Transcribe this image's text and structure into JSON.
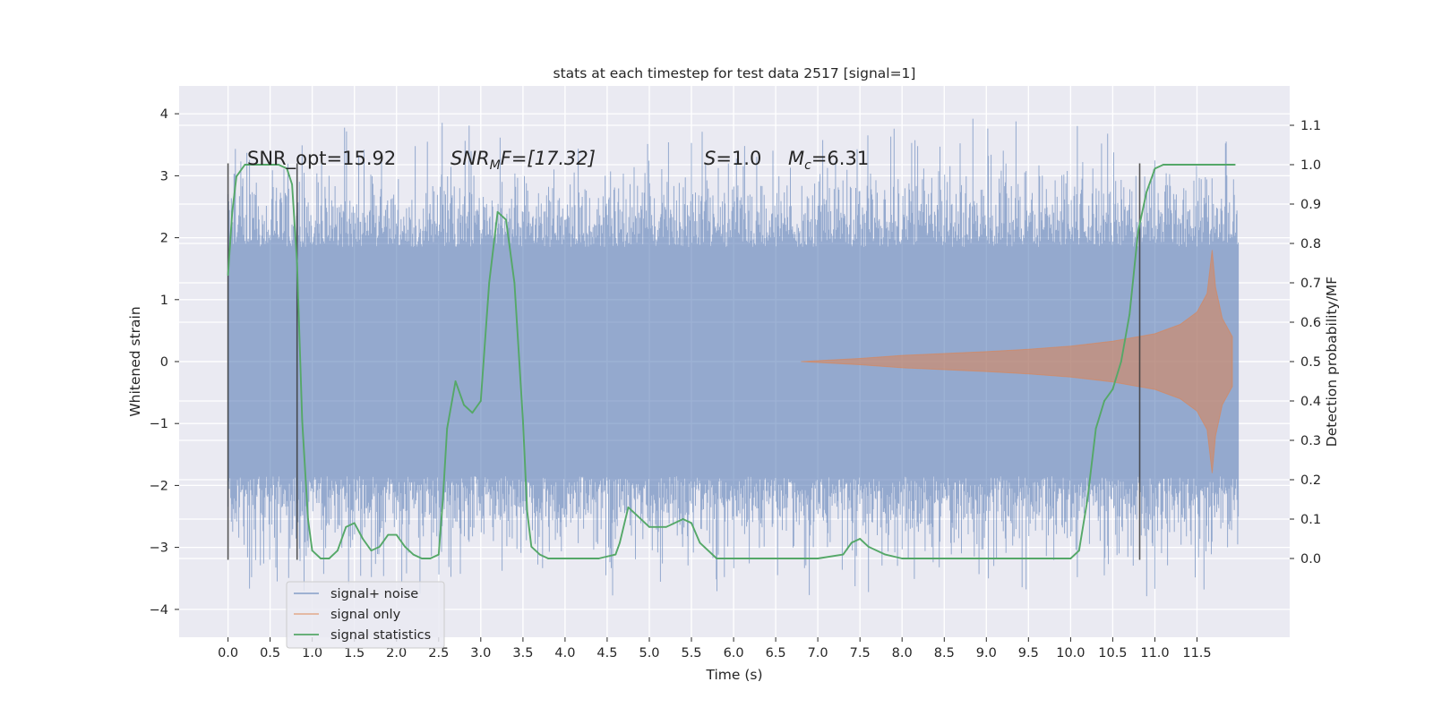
{
  "chart_data": {
    "type": "line",
    "title": "stats at each timestep for test data 2517 [signal=1]",
    "xlabel": "Time (s)",
    "ylabel": "Whitened strain",
    "ylabel_right": "Detection probability/MF",
    "xlim": [
      -0.58,
      12.6
    ],
    "ylim": [
      -4.45,
      4.45
    ],
    "ylim_right": [
      -0.2,
      1.2
    ],
    "x_ticks": [
      0.0,
      0.5,
      1.0,
      1.5,
      2.0,
      2.5,
      3.0,
      3.5,
      4.0,
      4.5,
      5.0,
      5.5,
      6.0,
      6.5,
      7.0,
      7.5,
      8.0,
      8.5,
      9.0,
      9.5,
      10.0,
      10.5,
      11.0,
      11.5
    ],
    "x_tick_labels": [
      "0.0",
      "0.5",
      "1.0",
      "1.5",
      "2.0",
      "2.5",
      "3.0",
      "3.5",
      "4.0",
      "4.5",
      "5.0",
      "5.5",
      "6.0",
      "6.5",
      "7.0",
      "7.5",
      "8.0",
      "8.5",
      "9.0",
      "9.5",
      "10.0",
      "10.5",
      "11.0",
      "11.5"
    ],
    "y_ticks": [
      -4,
      -3,
      -2,
      -1,
      0,
      1,
      2,
      3,
      4
    ],
    "y_tick_labels": [
      "−4",
      "−3",
      "−2",
      "−1",
      "0",
      "1",
      "2",
      "3",
      "4"
    ],
    "y_right_ticks": [
      0.0,
      0.1,
      0.2,
      0.3,
      0.4,
      0.5,
      0.6,
      0.7,
      0.8,
      0.9,
      1.0,
      1.1
    ],
    "y_right_tick_labels": [
      "0.0",
      "0.1",
      "0.2",
      "0.3",
      "0.4",
      "0.5",
      "0.6",
      "0.7",
      "0.8",
      "0.9",
      "1.0",
      "1.1"
    ],
    "grid": true,
    "legend_position": "bottom-left",
    "annotations": [
      {
        "text": "SNR_opt=15.92",
        "x": 0.2,
        "y": 3.25
      },
      {
        "text": "SNR_MF=[17.32]",
        "x": 2.62,
        "y": 3.25
      },
      {
        "text": "S=1.0",
        "x": 5.6,
        "y": 3.25
      },
      {
        "text": "M_c=6.31",
        "x": 6.6,
        "y": 3.25
      }
    ],
    "annotation_display": {
      "snr_opt": "SNR_opt=15.92",
      "snr_mf_main": "SNR",
      "snr_mf_sub": "M",
      "snr_mf_rest": "F=[17.32]",
      "s_main": "S",
      "s_rest": "=1.0",
      "mc_main": "M",
      "mc_sub": "c",
      "mc_rest": "=6.31"
    },
    "vertical_markers": [
      {
        "x": 0.0,
        "ymin": -3.2,
        "ymax": 3.2
      },
      {
        "x": 0.82,
        "ymin": -3.2,
        "ymax": 3.2
      },
      {
        "x": 10.82,
        "ymin": -3.2,
        "ymax": 3.2
      }
    ],
    "series": [
      {
        "name": "signal+ noise",
        "color": "#4c72b0",
        "x_range": [
          0.0,
          11.99
        ],
        "description": "dense whitened strain noise, approx. amplitude 2 with spikes up to ~4"
      },
      {
        "name": "signal only",
        "color": "#dd8452",
        "x_range": [
          6.8,
          11.92
        ],
        "envelope": {
          "x": [
            6.8,
            7.5,
            8.0,
            8.5,
            9.0,
            9.5,
            10.0,
            10.5,
            11.0,
            11.3,
            11.5,
            11.62,
            11.68,
            11.72,
            11.8,
            11.92
          ],
          "amplitude": [
            0.0,
            0.05,
            0.1,
            0.13,
            0.16,
            0.2,
            0.25,
            0.33,
            0.45,
            0.6,
            0.8,
            1.1,
            1.8,
            1.2,
            0.7,
            0.4
          ]
        }
      },
      {
        "name": "signal statistics",
        "color": "#55a868",
        "axis": "right",
        "x": [
          0.0,
          0.05,
          0.1,
          0.2,
          0.3,
          0.4,
          0.5,
          0.6,
          0.7,
          0.76,
          0.82,
          0.88,
          0.95,
          1.0,
          1.1,
          1.2,
          1.3,
          1.4,
          1.5,
          1.6,
          1.7,
          1.8,
          1.9,
          2.0,
          2.1,
          2.2,
          2.3,
          2.4,
          2.5,
          2.55,
          2.6,
          2.7,
          2.8,
          2.9,
          3.0,
          3.1,
          3.2,
          3.3,
          3.4,
          3.5,
          3.55,
          3.6,
          3.7,
          3.8,
          4.0,
          4.2,
          4.4,
          4.6,
          4.65,
          4.75,
          4.85,
          5.0,
          5.2,
          5.4,
          5.5,
          5.6,
          5.8,
          6.0,
          6.5,
          6.8,
          7.0,
          7.3,
          7.4,
          7.5,
          7.6,
          7.8,
          8.0,
          8.5,
          9.0,
          9.5,
          10.0,
          10.1,
          10.2,
          10.3,
          10.4,
          10.5,
          10.6,
          10.7,
          10.8,
          10.9,
          11.0,
          11.1,
          11.2,
          11.4,
          11.6,
          11.8,
          11.95
        ],
        "values": [
          0.72,
          0.88,
          0.97,
          1.0,
          1.0,
          1.0,
          1.0,
          1.0,
          0.99,
          0.95,
          0.75,
          0.35,
          0.1,
          0.02,
          0.0,
          0.0,
          0.02,
          0.08,
          0.09,
          0.05,
          0.02,
          0.03,
          0.06,
          0.06,
          0.03,
          0.01,
          0.0,
          0.0,
          0.01,
          0.15,
          0.33,
          0.45,
          0.39,
          0.37,
          0.4,
          0.7,
          0.88,
          0.86,
          0.7,
          0.35,
          0.12,
          0.03,
          0.01,
          0.0,
          0.0,
          0.0,
          0.0,
          0.01,
          0.04,
          0.13,
          0.11,
          0.08,
          0.08,
          0.1,
          0.09,
          0.04,
          0.0,
          0.0,
          0.0,
          0.0,
          0.0,
          0.01,
          0.04,
          0.05,
          0.03,
          0.01,
          0.0,
          0.0,
          0.0,
          0.0,
          0.0,
          0.02,
          0.15,
          0.33,
          0.4,
          0.43,
          0.5,
          0.62,
          0.83,
          0.93,
          0.99,
          1.0,
          1.0,
          1.0,
          1.0,
          1.0,
          1.0
        ]
      }
    ]
  }
}
